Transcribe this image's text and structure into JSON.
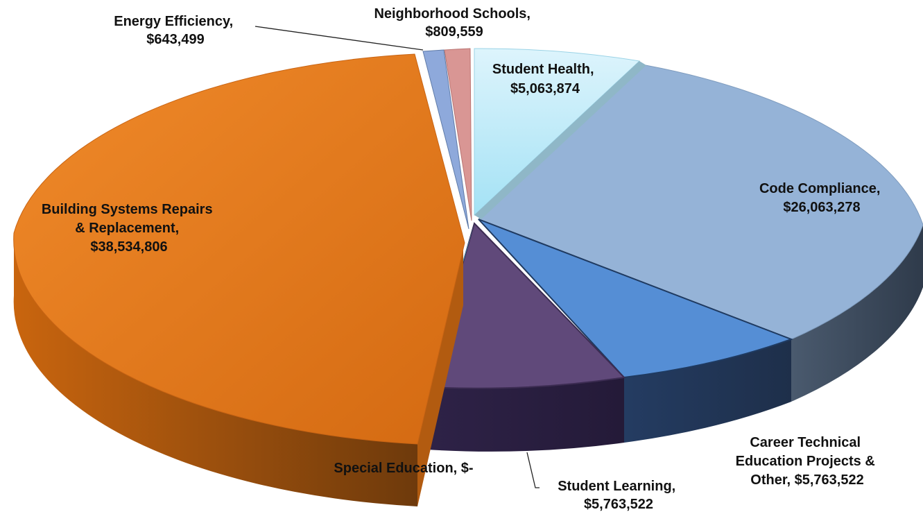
{
  "chart_data": {
    "type": "pie",
    "title": "",
    "slices": [
      {
        "name": "Student Health",
        "value": 5063874,
        "value_label": "$5,063,874",
        "color": "#BDEBF8"
      },
      {
        "name": "Code Compliance",
        "value": 26063278,
        "value_label": "$26,063,278",
        "color": "#95B3D7"
      },
      {
        "name": "Career Technical Education Projects & Other",
        "value": 5763522,
        "value_label": "$5,763,522",
        "color": "#558ED5"
      },
      {
        "name": "Student Learning",
        "value": 5763522,
        "value_label": "$5,763,522",
        "color": "#60497A"
      },
      {
        "name": "Special Education",
        "value": 0,
        "value_label": "$-",
        "color": "#4BACC6"
      },
      {
        "name": "Building Systems Repairs & Replacement",
        "value": 38534806,
        "value_label": "$38,534,806",
        "color": "#E46C0A"
      },
      {
        "name": "Energy Efficiency",
        "value": 643499,
        "value_label": "$643,499",
        "color": "#8EA9DB"
      },
      {
        "name": "Neighborhood Schools",
        "value": 809559,
        "value_label": "$809,559",
        "color": "#D99694"
      }
    ]
  },
  "labels": {
    "student_health": [
      "Student Health,",
      "$5,063,874"
    ],
    "code_compliance": [
      "Code Compliance,",
      "$26,063,278"
    ],
    "career_technical": [
      "Career Technical",
      "Education Projects &",
      "Other,  $5,763,522"
    ],
    "student_learning": [
      "Student Learning,",
      "$5,763,522"
    ],
    "special_education": [
      "Special Education,  $-"
    ],
    "building_systems": [
      "Building Systems Repairs",
      "& Replacement,",
      "$38,534,806"
    ],
    "energy_efficiency": [
      "Energy Efficiency,",
      "$643,499"
    ],
    "neighborhood_schools": [
      "Neighborhood Schools,",
      "$809,559"
    ]
  }
}
